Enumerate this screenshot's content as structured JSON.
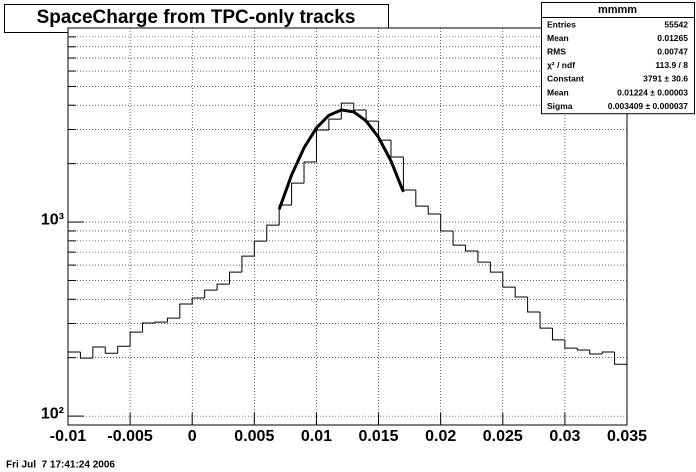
{
  "chart_data": {
    "type": "histogram",
    "title": "SpaceCharge from TPC-only tracks",
    "bins": [
      -0.01,
      -0.009,
      -0.008,
      -0.007,
      -0.006,
      -0.005,
      -0.004,
      -0.003,
      -0.002,
      -0.001,
      0,
      0.001,
      0.002,
      0.003,
      0.004,
      0.005,
      0.006,
      0.007,
      0.008,
      0.009,
      0.01,
      0.011,
      0.012,
      0.013,
      0.014,
      0.015,
      0.016,
      0.017,
      0.018,
      0.019,
      0.02,
      0.021,
      0.022,
      0.023,
      0.024,
      0.025,
      0.026,
      0.027,
      0.028,
      0.029,
      0.03,
      0.031,
      0.032,
      0.033,
      0.034,
      0.035
    ],
    "values": [
      214,
      199,
      227,
      211,
      229,
      271,
      302,
      305,
      320,
      378,
      406,
      446,
      479,
      552,
      668,
      798,
      965,
      1224,
      1588,
      2038,
      2980,
      3390,
      4100,
      3780,
      3310,
      2645,
      2164,
      1462,
      1209,
      1100,
      899,
      761,
      709,
      622,
      552,
      462,
      411,
      344,
      284,
      247,
      224,
      219,
      209,
      214,
      185
    ],
    "color": "#000000",
    "fit": {
      "color": "#000000",
      "x": [
        0.007,
        0.008,
        0.009,
        0.01,
        0.011,
        0.012,
        0.013,
        0.014,
        0.015,
        0.016,
        0.017
      ],
      "values": [
        1163,
        1749,
        2413,
        3055,
        3548,
        3782,
        3698,
        3318,
        2731,
        2064,
        1430
      ]
    },
    "xlim": [
      -0.01,
      0.035
    ],
    "xticks": [
      -0.01,
      -0.005,
      0,
      0.005,
      0.01,
      0.015,
      0.02,
      0.025,
      0.03,
      0.035
    ],
    "ylim": [
      90,
      10000
    ],
    "log_y": true,
    "yticks": [
      {
        "value": 100,
        "label": "10²"
      },
      {
        "value": 1000,
        "label": "10³"
      }
    ],
    "yminor": [
      200,
      300,
      400,
      500,
      600,
      700,
      800,
      900,
      2000,
      3000,
      4000,
      5000,
      6000,
      7000,
      8000,
      9000,
      10000
    ],
    "grid": true,
    "stats": {
      "title": "mmmm",
      "rows": [
        [
          "Entries",
          "55542"
        ],
        [
          "Mean",
          "0.01265"
        ],
        [
          "RMS",
          "0.00747"
        ],
        [
          "χ² / ndf",
          "113.9 / 8"
        ],
        [
          "Constant",
          "3791 ± 30.6"
        ],
        [
          "Mean",
          "0.01224 ± 0.00003"
        ],
        [
          "Sigma",
          "0.003409 ± 0.000037"
        ]
      ]
    },
    "footer": "Fri Jul  7 17:41:24 2006"
  }
}
